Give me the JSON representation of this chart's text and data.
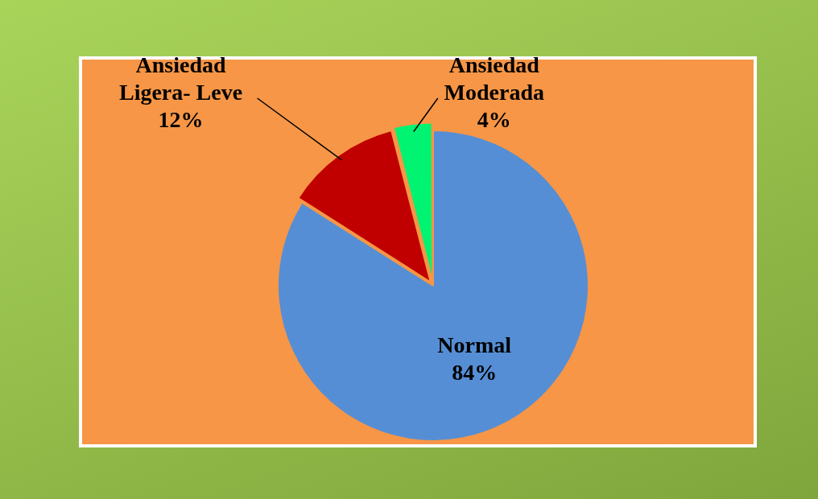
{
  "chart_data": {
    "type": "pie",
    "categories": [
      "Normal",
      "Ansiedad Ligera- Leve",
      "Ansiedad Moderada"
    ],
    "values": [
      84,
      12,
      4
    ],
    "colors": [
      "#558ed5",
      "#c00000",
      "#00f371"
    ],
    "value_labels": [
      "84%",
      "12%",
      "4%"
    ],
    "legend": false
  }
}
